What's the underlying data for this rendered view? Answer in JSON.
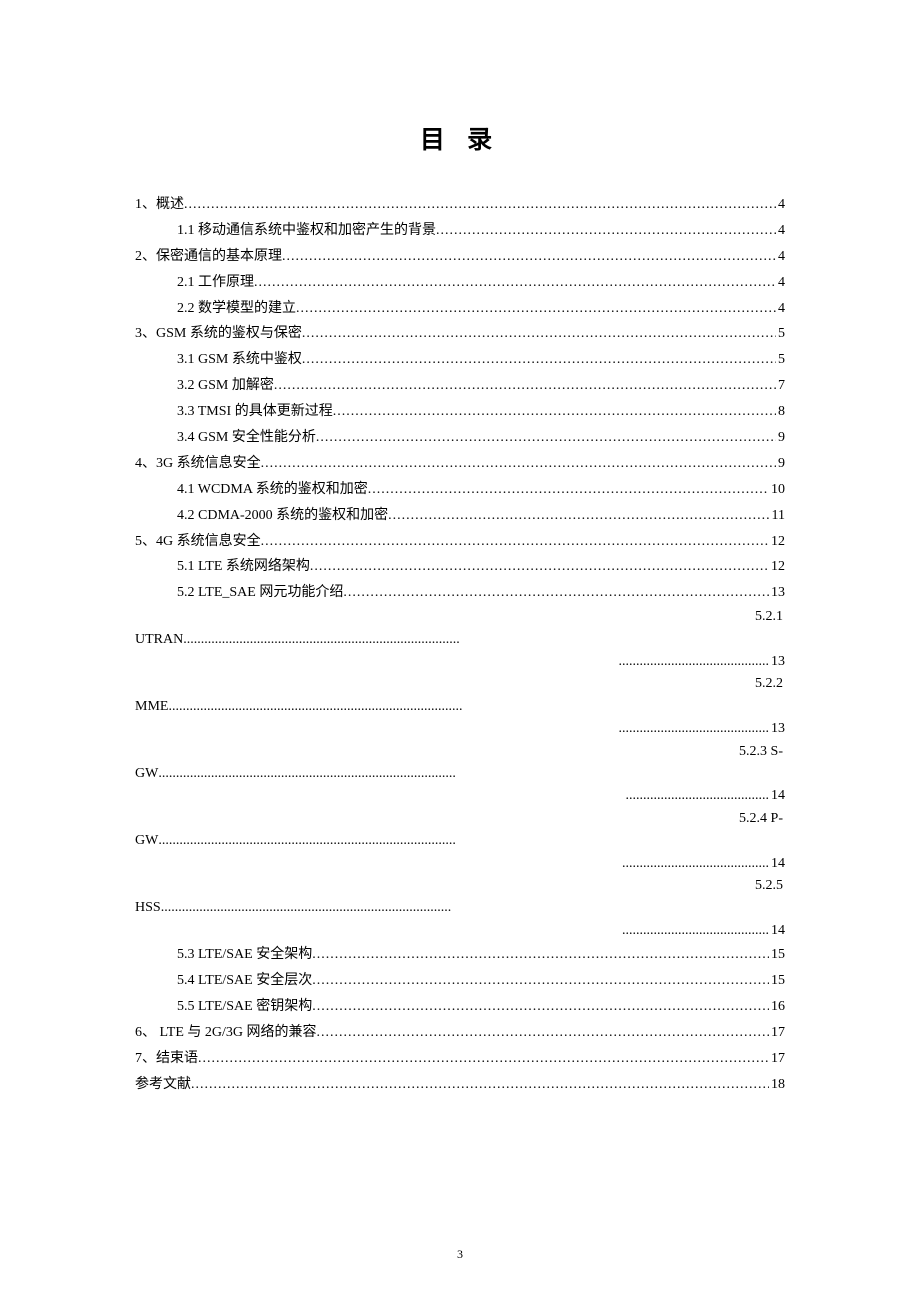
{
  "title": "目 录",
  "page_number": "3",
  "entries": [
    {
      "level": 0,
      "label": "1、概述",
      "page": "4"
    },
    {
      "level": 1,
      "label": "1.1 移动通信系统中鉴权和加密产生的背景",
      "page": "4"
    },
    {
      "level": 0,
      "label": "2、保密通信的基本原理",
      "page": "4"
    },
    {
      "level": 1,
      "label": "2.1 工作原理",
      "page": "4"
    },
    {
      "level": 1,
      "label": "2.2 数学模型的建立",
      "page": "4"
    },
    {
      "level": 0,
      "label": "3、GSM 系统的鉴权与保密",
      "page": "5"
    },
    {
      "level": 1,
      "label": "3.1  GSM 系统中鉴权",
      "page": "5"
    },
    {
      "level": 1,
      "label": "3.2  GSM 加解密",
      "page": "7"
    },
    {
      "level": 1,
      "label": "3.3  TMSI 的具体更新过程",
      "page": "8"
    },
    {
      "level": 1,
      "label": "3.4  GSM 安全性能分析",
      "page": "9"
    },
    {
      "level": 0,
      "label": "4、3G 系统信息安全",
      "page": "9"
    },
    {
      "level": 1,
      "label": "4.1  WCDMA 系统的鉴权和加密",
      "page": "10"
    },
    {
      "level": 1,
      "label": "4.2  CDMA-2000 系统的鉴权和加密",
      "page": "11"
    },
    {
      "level": 0,
      "label": "5、4G 系统信息安全",
      "page": "12"
    },
    {
      "level": 1,
      "label": "5.1  LTE 系统网络架构",
      "page": "12"
    },
    {
      "level": 1,
      "label": "5.2  LTE_SAE 网元功能介绍",
      "page": "13"
    }
  ],
  "wrapped": [
    {
      "num": "5.2.1",
      "label": "UTRAN",
      "dots1": "...............................................................................",
      "dots2": "...........................................",
      "page": "13"
    },
    {
      "num": "5.2.2",
      "label": "MME",
      "dots1": "....................................................................................",
      "dots2": "...........................................",
      "page": "13"
    },
    {
      "num": "5.2.3 S-",
      "label": "GW",
      "dots1": ".....................................................................................",
      "dots2": ".........................................",
      "page": "14"
    },
    {
      "num": "5.2.4 P-",
      "label": "GW",
      "dots1": ".....................................................................................",
      "dots2": "..........................................",
      "page": "14"
    },
    {
      "num": "5.2.5",
      "label": "HSS",
      "dots1": "...................................................................................",
      "dots2": "..........................................",
      "page": "14"
    }
  ],
  "entries2": [
    {
      "level": 1,
      "label": "5.3  LTE/SAE 安全架构",
      "page": "15"
    },
    {
      "level": 1,
      "label": "5.4  LTE/SAE 安全层次",
      "page": "15"
    },
    {
      "level": 1,
      "label": "5.5  LTE/SAE 密钥架构",
      "page": "16"
    },
    {
      "level": 0,
      "label": "6、 LTE 与 2G/3G 网络的兼容",
      "page": "17"
    },
    {
      "level": 0,
      "label": "7、结束语",
      "page": "17"
    },
    {
      "level": 0,
      "label": "参考文献",
      "page": "18"
    }
  ]
}
